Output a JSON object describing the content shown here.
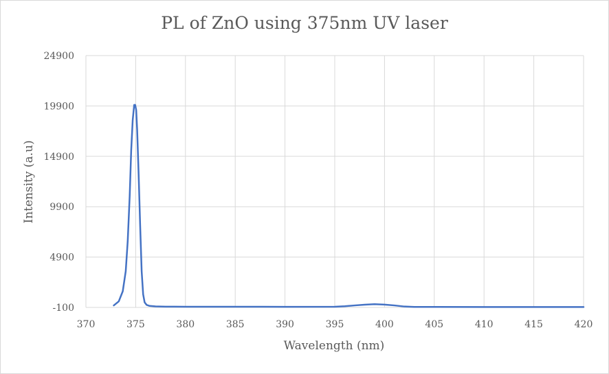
{
  "chart_data": {
    "type": "line",
    "title": "PL of ZnO using 375nm UV laser",
    "xlabel": "Wavelength (nm)",
    "ylabel": "Intensity (a.u)",
    "xlim": [
      370,
      420
    ],
    "ylim": [
      -100,
      24900
    ],
    "x_ticks": [
      370,
      375,
      380,
      385,
      390,
      395,
      400,
      405,
      410,
      415,
      420
    ],
    "y_ticks": [
      -100,
      4900,
      9900,
      14900,
      19900,
      24900
    ],
    "grid": true,
    "legend": "none",
    "series": [
      {
        "color": "#4472c4",
        "x": [
          372.8,
          373.3,
          373.7,
          374.0,
          374.2,
          374.4,
          374.55,
          374.7,
          374.85,
          374.95,
          375.05,
          375.15,
          375.3,
          375.45,
          375.6,
          375.75,
          375.9,
          376.1,
          376.4,
          377,
          378,
          380,
          385,
          390,
          395,
          396,
          397,
          398,
          399,
          400,
          401,
          402,
          403,
          405,
          410,
          415,
          420
        ],
        "y": [
          100,
          500,
          1500,
          3500,
          6500,
          11000,
          15500,
          18500,
          20000,
          20000,
          19500,
          17500,
          13000,
          8000,
          3500,
          1200,
          400,
          150,
          50,
          0,
          -20,
          -30,
          -30,
          -40,
          -30,
          20,
          100,
          170,
          220,
          180,
          100,
          -10,
          -50,
          -50,
          -60,
          -60,
          -60
        ]
      }
    ]
  }
}
